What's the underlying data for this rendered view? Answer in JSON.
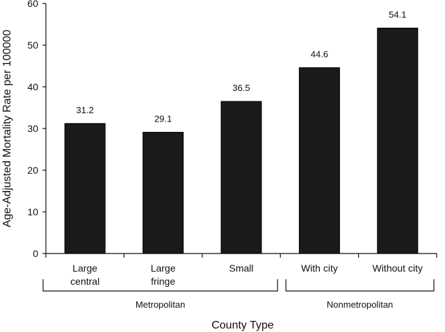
{
  "chart_data": {
    "type": "bar",
    "categories": [
      "Large central",
      "Large fringe",
      "Small",
      "With city",
      "Without city"
    ],
    "category_lines": [
      [
        "Large",
        "central"
      ],
      [
        "Large",
        "fringe"
      ],
      [
        "Small"
      ],
      [
        "With city"
      ],
      [
        "Without city"
      ]
    ],
    "values": [
      31.2,
      29.1,
      36.5,
      44.6,
      54.1
    ],
    "data_labels": [
      "31.2",
      "29.1",
      "36.5",
      "44.6",
      "54.1"
    ],
    "groups": [
      {
        "label": "Metropolitan",
        "categories": [
          "Large central",
          "Large fringe",
          "Small"
        ]
      },
      {
        "label": "Nonmetropolitan",
        "categories": [
          "With city",
          "Without city"
        ]
      }
    ],
    "xlabel": "County Type",
    "ylabel": "Age-Adjusted Mortality Rate per 100000",
    "ylim": [
      0,
      60
    ],
    "yticks": [
      0,
      10,
      20,
      30,
      40,
      50,
      60
    ],
    "bar_color": "#1a1a1a",
    "grid": false
  }
}
